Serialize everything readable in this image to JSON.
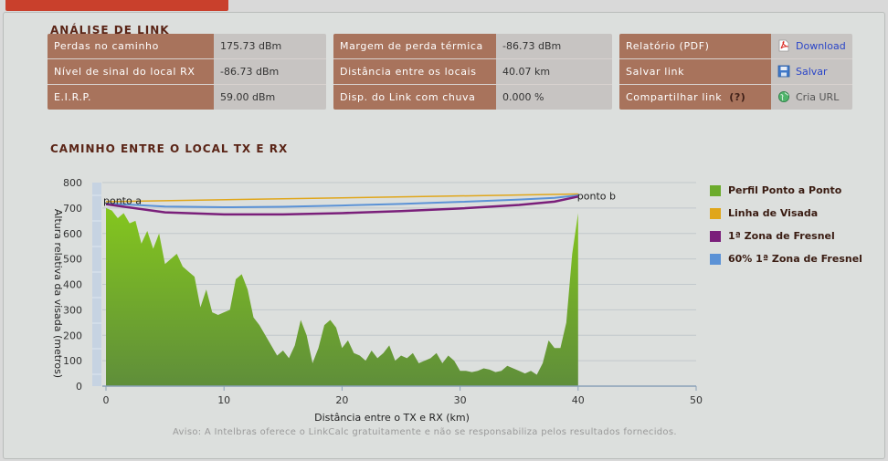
{
  "analysis": {
    "title": "ANÁLISE DE LINK",
    "panel1": [
      {
        "label": "Perdas no caminho",
        "value": "175.73 dBm"
      },
      {
        "label": "Nível de sinal do local RX",
        "value": "-86.73 dBm"
      },
      {
        "label": "E.I.R.P.",
        "value": "59.00 dBm"
      }
    ],
    "panel2": [
      {
        "label": "Margem de perda térmica",
        "value": "-86.73 dBm"
      },
      {
        "label": "Distância entre os locais",
        "value": "40.07 km"
      },
      {
        "label": "Disp. do Link com chuva",
        "value": "0.000 %"
      }
    ],
    "panel3": [
      {
        "label": "Relatório (PDF)",
        "action": "Download",
        "icon": "pdf-icon"
      },
      {
        "label": "Salvar link",
        "action": "Salvar",
        "icon": "save-icon"
      },
      {
        "label": "Compartilhar link",
        "help": "(?)",
        "action": "Cria URL",
        "icon": "globe-icon"
      }
    ]
  },
  "path_section": {
    "title": "CAMINHO ENTRE O LOCAL TX E RX"
  },
  "notice": "Aviso: A Intelbras oferece o LinkCalc gratuitamente e não se responsabiliza pelos resultados fornecidos.",
  "colors": {
    "terrain_top": "#84c61e",
    "terrain_bottom": "#5f8e3a",
    "line_of_sight": "#e0a61a",
    "fresnel": "#7a1f7a",
    "fresnel60": "#5b92d6",
    "label_bg": "#a8735c",
    "value_bg": "#c7c4c2"
  },
  "chart_data": {
    "type": "area",
    "xlabel": "Distância entre o TX e RX (km)",
    "ylabel": "Altura relativa da visada (metros)",
    "xlim": [
      0,
      50
    ],
    "ylim": [
      0,
      800
    ],
    "x_ticks": [
      0,
      10,
      20,
      30,
      40,
      50
    ],
    "y_ticks": [
      0,
      100,
      200,
      300,
      400,
      500,
      600,
      700,
      800
    ],
    "grid": true,
    "legend_position": "right",
    "endpoint_labels": [
      {
        "text": "ponto a",
        "x": 0,
        "y": 715
      },
      {
        "text": "ponto b",
        "x": 40,
        "y": 745
      }
    ],
    "series": [
      {
        "name": "Perfil Ponto a Ponto",
        "kind": "area",
        "x": [
          0,
          0.5,
          1,
          1.5,
          2,
          2.5,
          3,
          3.5,
          4,
          4.5,
          5,
          5.5,
          6,
          6.5,
          7,
          7.5,
          8,
          8.5,
          9,
          9.5,
          10,
          10.5,
          11,
          11.5,
          12,
          12.5,
          13,
          13.5,
          14,
          14.5,
          15,
          15.5,
          16,
          16.5,
          17,
          17.5,
          18,
          18.5,
          19,
          19.5,
          20,
          20.5,
          21,
          21.5,
          22,
          22.5,
          23,
          23.5,
          24,
          24.5,
          25,
          25.5,
          26,
          26.5,
          27,
          27.5,
          28,
          28.5,
          29,
          29.5,
          30,
          30.5,
          31,
          31.5,
          32,
          32.5,
          33,
          33.5,
          34,
          34.5,
          35,
          35.5,
          36,
          36.5,
          37,
          37.5,
          38,
          38.5,
          39,
          39.5,
          40
        ],
        "y": [
          700,
          690,
          660,
          680,
          640,
          650,
          560,
          610,
          540,
          600,
          480,
          500,
          520,
          470,
          450,
          430,
          310,
          380,
          290,
          280,
          290,
          300,
          420,
          440,
          380,
          270,
          240,
          200,
          160,
          120,
          140,
          110,
          160,
          260,
          200,
          90,
          150,
          240,
          260,
          230,
          150,
          180,
          130,
          120,
          100,
          140,
          110,
          130,
          160,
          100,
          120,
          110,
          130,
          90,
          100,
          110,
          130,
          90,
          120,
          100,
          60,
          60,
          55,
          60,
          70,
          65,
          55,
          60,
          80,
          70,
          60,
          50,
          60,
          45,
          90,
          180,
          150,
          150,
          250,
          520,
          680
        ]
      },
      {
        "name": "Linha de Visada",
        "kind": "line",
        "x": [
          0,
          40
        ],
        "y": [
          725,
          755
        ]
      },
      {
        "name": "1ª Zona de Fresnel",
        "kind": "line",
        "x": [
          0,
          5,
          10,
          15,
          20,
          25,
          30,
          35,
          38,
          40
        ],
        "y": [
          715,
          683,
          675,
          675,
          680,
          688,
          698,
          712,
          725,
          745
        ]
      },
      {
        "name": "60% 1ª Zona de Fresnel",
        "kind": "line",
        "x": [
          0,
          5,
          10,
          15,
          20,
          25,
          30,
          35,
          38,
          40
        ],
        "y": [
          718,
          706,
          703,
          705,
          710,
          716,
          724,
          733,
          740,
          750
        ]
      }
    ]
  }
}
